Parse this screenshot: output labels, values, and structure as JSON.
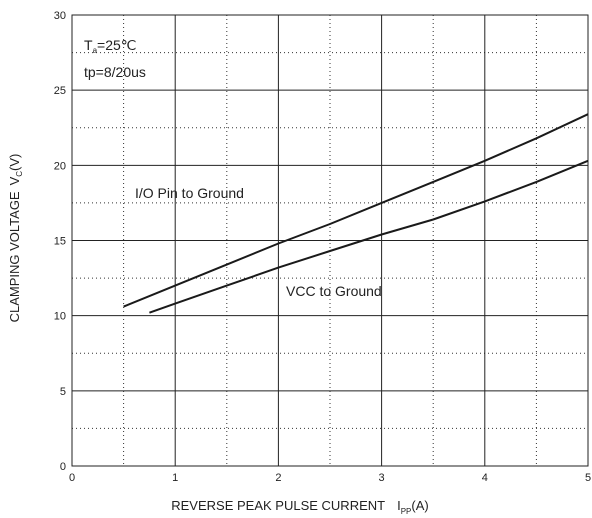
{
  "chart_data": {
    "type": "line",
    "xlabel": "REVERSE PEAK PULSE CURRENT",
    "xlabel_symbol": "I",
    "xlabel_subscript": "PP",
    "xlabel_unit": "(A)",
    "ylabel": "CLAMPING VOLTAGE",
    "ylabel_symbol": "V",
    "ylabel_subscript": "C",
    "ylabel_unit": "(V)",
    "xlim": [
      0,
      5
    ],
    "ylim": [
      0,
      30
    ],
    "x_ticks": [
      "0",
      "1",
      "2",
      "3",
      "4",
      "5"
    ],
    "y_ticks": [
      "0",
      "5",
      "10",
      "15",
      "20",
      "25",
      "30"
    ],
    "grid": "solid major lines, dotted minor lines",
    "conditions": {
      "ta_symbol": "T",
      "ta_subscript": "a",
      "ta_value": "=25℃",
      "tp": "tp=8/20us"
    },
    "series": [
      {
        "name": "I/O Pin to Ground",
        "x": [
          0.5,
          1,
          1.5,
          2,
          2.5,
          3,
          3.5,
          4,
          4.5,
          5
        ],
        "y": [
          10.6,
          12.0,
          13.4,
          14.8,
          16.1,
          17.5,
          18.9,
          20.3,
          21.8,
          23.4
        ]
      },
      {
        "name": "VCC to Ground",
        "x": [
          0.75,
          1,
          1.5,
          2,
          2.5,
          3,
          3.5,
          4,
          4.5,
          5
        ],
        "y": [
          10.2,
          10.8,
          12.0,
          13.2,
          14.3,
          15.4,
          16.4,
          17.6,
          18.9,
          20.3
        ]
      }
    ],
    "colors": {
      "line": "#1a1a1a",
      "grid": "#222222",
      "background": "#ffffff"
    }
  }
}
